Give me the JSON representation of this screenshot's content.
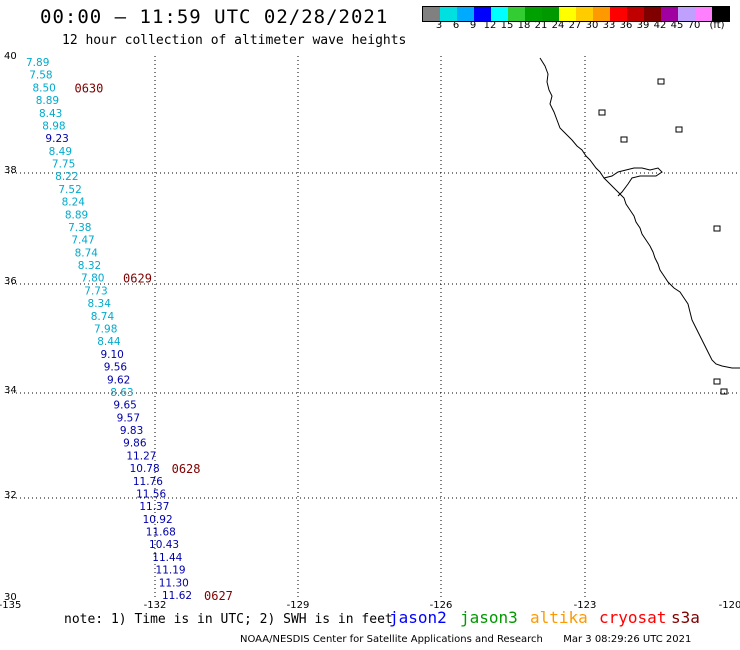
{
  "header": {
    "title": "00:00 – 11:59 UTC 02/28/2021",
    "subtitle": "12 hour collection of altimeter wave heights"
  },
  "colorbar": {
    "swatches": [
      "#808080",
      "#00e0e0",
      "#00aaff",
      "#0000ff",
      "#00ffff",
      "#33cc33",
      "#00a000",
      "#009900",
      "#ffff00",
      "#ffcc00",
      "#ff9900",
      "#ff0000",
      "#c00000",
      "#800000",
      "#a000a0",
      "#c0a0ff",
      "#ff80ff",
      "#000000"
    ],
    "labels": [
      "3",
      "6",
      "9",
      "12",
      "15",
      "18",
      "21",
      "24",
      "27",
      "30",
      "33",
      "36",
      "39",
      "42",
      "45",
      "70",
      "(ft)"
    ]
  },
  "map": {
    "lat_labels": [
      "40",
      "38",
      "36",
      "34",
      "32",
      "30"
    ],
    "lon_labels": [
      "-135",
      "-132",
      "-129",
      "-126",
      "-123",
      "-120"
    ],
    "colors": {
      "jason3": "#009900",
      "s3a_swh_light": "#00aacc",
      "s3a_swh_dark": "#0000aa",
      "time_label": "#800000",
      "coast": "#000000",
      "grid": "#000000"
    },
    "track_points": [
      {
        "v": "7.89",
        "tier": "light"
      },
      {
        "v": "7.58",
        "tier": "light"
      },
      {
        "v": "8.50",
        "tier": "light"
      },
      {
        "v": "8.89",
        "tier": "light"
      },
      {
        "v": "8.43",
        "tier": "light"
      },
      {
        "v": "8.98",
        "tier": "light"
      },
      {
        "v": "9.23",
        "tier": "dark"
      },
      {
        "v": "8.49",
        "tier": "light"
      },
      {
        "v": "7.75",
        "tier": "light"
      },
      {
        "v": "8.22",
        "tier": "light"
      },
      {
        "v": "7.52",
        "tier": "light"
      },
      {
        "v": "8.24",
        "tier": "light"
      },
      {
        "v": "8.89",
        "tier": "light"
      },
      {
        "v": "7.38",
        "tier": "light"
      },
      {
        "v": "7.47",
        "tier": "light"
      },
      {
        "v": "8.74",
        "tier": "light"
      },
      {
        "v": "8.32",
        "tier": "light"
      },
      {
        "v": "7.80",
        "tier": "light"
      },
      {
        "v": "7.73",
        "tier": "light"
      },
      {
        "v": "8.34",
        "tier": "light"
      },
      {
        "v": "8.74",
        "tier": "light"
      },
      {
        "v": "7.98",
        "tier": "light"
      },
      {
        "v": "8.44",
        "tier": "light"
      },
      {
        "v": "9.10",
        "tier": "dark"
      },
      {
        "v": "9.56",
        "tier": "dark"
      },
      {
        "v": "9.62",
        "tier": "dark"
      },
      {
        "v": "8.63",
        "tier": "light"
      },
      {
        "v": "9.65",
        "tier": "dark"
      },
      {
        "v": "9.57",
        "tier": "dark"
      },
      {
        "v": "9.83",
        "tier": "dark"
      },
      {
        "v": "9.86",
        "tier": "dark"
      },
      {
        "v": "11.27",
        "tier": "dark"
      },
      {
        "v": "10.78",
        "tier": "dark"
      },
      {
        "v": "11.76",
        "tier": "dark"
      },
      {
        "v": "11.56",
        "tier": "dark"
      },
      {
        "v": "11.37",
        "tier": "dark"
      },
      {
        "v": "10.92",
        "tier": "dark"
      },
      {
        "v": "11.68",
        "tier": "dark"
      },
      {
        "v": "10.43",
        "tier": "dark"
      },
      {
        "v": "11.44",
        "tier": "dark"
      },
      {
        "v": "11.19",
        "tier": "dark"
      },
      {
        "v": "11.30",
        "tier": "dark"
      },
      {
        "v": "11.62",
        "tier": "dark"
      }
    ],
    "time_labels": [
      "0630",
      "0629",
      "0628",
      "0627"
    ]
  },
  "footer": {
    "note": "note: 1) Time is in UTC; 2) SWH is in feet",
    "satellites": [
      {
        "name": "jason2",
        "color": "#0000ff"
      },
      {
        "name": "jason3",
        "color": "#009900"
      },
      {
        "name": "altika",
        "color": "#ff9900"
      },
      {
        "name": "cryosat",
        "color": "#ff0000"
      },
      {
        "name": "s3a",
        "color": "#800000"
      }
    ],
    "credit": "NOAA/NESDIS Center for Satellite Applications and Research",
    "timestamp": "Mar  3 08:29:26 UTC 2021"
  }
}
